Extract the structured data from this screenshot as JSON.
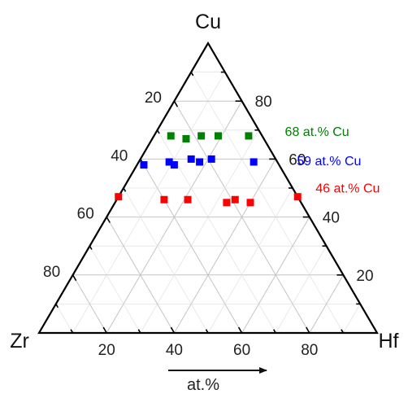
{
  "chart_data": {
    "type": "scatter",
    "subtype": "ternary",
    "vertices": {
      "top": "Cu",
      "left": "Zr",
      "right": "Hf"
    },
    "axis_unit_label": "at.%",
    "ticks": [
      "20",
      "40",
      "60",
      "80"
    ],
    "grid_step": 10,
    "series": [
      {
        "name": "68 at.% Cu",
        "color": "#008000",
        "points": [
          {
            "Cu": 68,
            "Hf": 5,
            "Zr": 27
          },
          {
            "Cu": 67,
            "Hf": 10,
            "Zr": 23
          },
          {
            "Cu": 68,
            "Hf": 14,
            "Zr": 18
          },
          {
            "Cu": 68,
            "Hf": 19,
            "Zr": 13
          },
          {
            "Cu": 68,
            "Hf": 28,
            "Zr": 4
          }
        ]
      },
      {
        "name": "59 at.% Cu",
        "color": "#0000ff",
        "points": [
          {
            "Cu": 58,
            "Hf": 2,
            "Zr": 40
          },
          {
            "Cu": 59,
            "Hf": 9,
            "Zr": 32
          },
          {
            "Cu": 58,
            "Hf": 11,
            "Zr": 31
          },
          {
            "Cu": 60,
            "Hf": 15,
            "Zr": 25
          },
          {
            "Cu": 59,
            "Hf": 18,
            "Zr": 23
          },
          {
            "Cu": 60,
            "Hf": 21,
            "Zr": 19
          },
          {
            "Cu": 59,
            "Hf": 34,
            "Zr": 7
          }
        ]
      },
      {
        "name": "46 at.% Cu",
        "color": "#ff0000",
        "points": [
          {
            "Cu": 47,
            "Hf": 0,
            "Zr": 53
          },
          {
            "Cu": 46,
            "Hf": 14,
            "Zr": 40
          },
          {
            "Cu": 46,
            "Hf": 21,
            "Zr": 33
          },
          {
            "Cu": 45,
            "Hf": 33,
            "Zr": 22
          },
          {
            "Cu": 46,
            "Hf": 35,
            "Zr": 19
          },
          {
            "Cu": 45,
            "Hf": 40,
            "Zr": 15
          },
          {
            "Cu": 47,
            "Hf": 53,
            "Zr": 0
          }
        ]
      }
    ]
  }
}
